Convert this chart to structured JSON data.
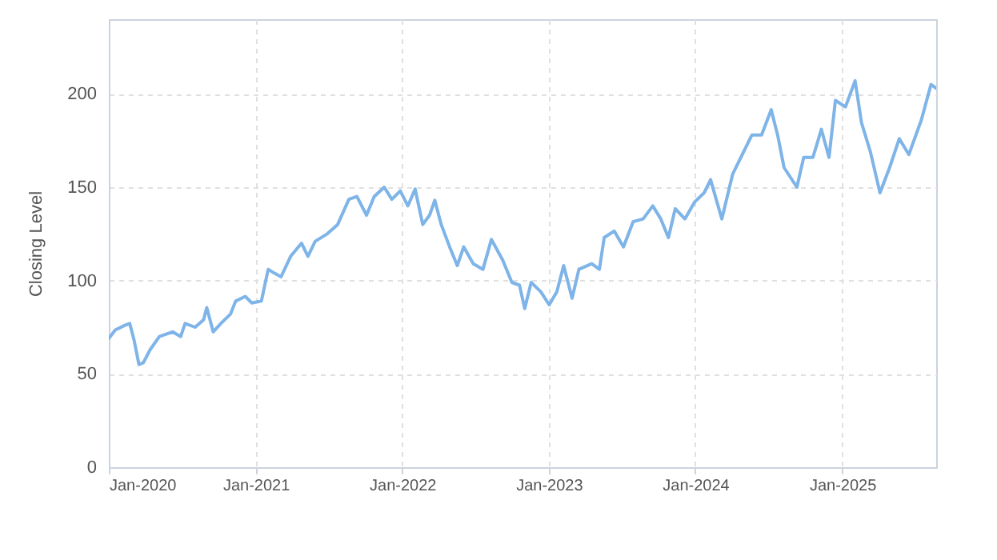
{
  "chart_data": {
    "type": "line",
    "ylabel": "Closing Level",
    "grid": true,
    "xlim": [
      "2020-01-01",
      "2025-08-23"
    ],
    "ylim": [
      0,
      240
    ],
    "yticks": [
      0,
      50,
      100,
      150,
      200
    ],
    "xticks": [
      {
        "value": "2020-01-01",
        "label": "Jan-2020"
      },
      {
        "value": "2021-01-01",
        "label": "Jan-2021"
      },
      {
        "value": "2022-01-01",
        "label": "Jan-2022"
      },
      {
        "value": "2023-01-01",
        "label": "Jan-2023"
      },
      {
        "value": "2024-01-01",
        "label": "Jan-2024"
      },
      {
        "value": "2025-01-01",
        "label": "Jan-2025"
      }
    ],
    "x": [
      "2020-01-01",
      "2020-01-17",
      "2020-02-10",
      "2020-02-22",
      "2020-03-04",
      "2020-03-16",
      "2020-03-27",
      "2020-04-13",
      "2020-05-06",
      "2020-06-08",
      "2020-06-28",
      "2020-07-09",
      "2020-08-03",
      "2020-08-24",
      "2020-09-01",
      "2020-09-17",
      "2020-10-06",
      "2020-10-30",
      "2020-11-12",
      "2020-12-06",
      "2020-12-22",
      "2021-01-15",
      "2021-02-01",
      "2021-02-16",
      "2021-03-05",
      "2021-03-29",
      "2021-04-25",
      "2021-05-11",
      "2021-05-29",
      "2021-06-28",
      "2021-07-24",
      "2021-08-21",
      "2021-09-10",
      "2021-10-04",
      "2021-10-23",
      "2021-11-17",
      "2021-12-06",
      "2021-12-27",
      "2022-01-15",
      "2022-02-02",
      "2022-02-21",
      "2022-03-10",
      "2022-03-23",
      "2022-04-08",
      "2022-04-29",
      "2022-05-18",
      "2022-06-03",
      "2022-06-27",
      "2022-07-21",
      "2022-08-11",
      "2022-09-08",
      "2022-10-01",
      "2022-10-20",
      "2022-11-02",
      "2022-11-18",
      "2022-12-12",
      "2023-01-02",
      "2023-01-21",
      "2023-02-07",
      "2023-02-28",
      "2023-03-17",
      "2023-04-18",
      "2023-05-07",
      "2023-05-19",
      "2023-06-13",
      "2023-07-06",
      "2023-07-30",
      "2023-08-24",
      "2023-09-17",
      "2023-10-07",
      "2023-10-26",
      "2023-11-12",
      "2023-12-06",
      "2023-12-30",
      "2024-01-23",
      "2024-02-08",
      "2024-03-07",
      "2024-04-03",
      "2024-04-27",
      "2024-05-21",
      "2024-06-14",
      "2024-07-08",
      "2024-07-24",
      "2024-08-09",
      "2024-09-10",
      "2024-09-27",
      "2024-10-20",
      "2024-11-10",
      "2024-11-29",
      "2024-12-15",
      "2025-01-09",
      "2025-02-02",
      "2025-02-18",
      "2025-03-12",
      "2025-04-05",
      "2025-04-29",
      "2025-05-23",
      "2025-06-16",
      "2025-07-17",
      "2025-08-10",
      "2025-08-23"
    ],
    "series": [
      {
        "color": "#7eb4e8",
        "values": [
          69,
          73.5,
          76,
          77,
          68,
          55,
          56,
          63,
          70,
          72.5,
          70,
          77,
          75,
          79,
          85.5,
          72.5,
          77,
          82,
          89,
          91.5,
          88,
          89,
          106,
          104,
          102,
          113,
          120,
          113,
          121,
          125,
          130,
          143.5,
          145,
          135,
          145,
          150,
          143.5,
          148,
          140,
          149,
          130,
          135,
          143,
          130,
          118,
          108,
          118,
          109,
          106,
          122,
          111,
          99,
          97.5,
          85,
          99,
          94,
          87,
          94,
          108,
          90.5,
          106,
          109,
          106,
          123,
          126.5,
          118,
          131.5,
          133,
          140,
          133,
          123,
          138.5,
          133,
          142,
          147,
          154,
          133,
          157,
          167.5,
          178,
          178,
          191.5,
          178,
          160.5,
          150,
          166,
          166,
          181,
          166,
          196.5,
          193,
          207,
          184.5,
          169,
          147,
          160.5,
          176,
          167.5,
          186,
          205,
          203
        ]
      }
    ]
  }
}
